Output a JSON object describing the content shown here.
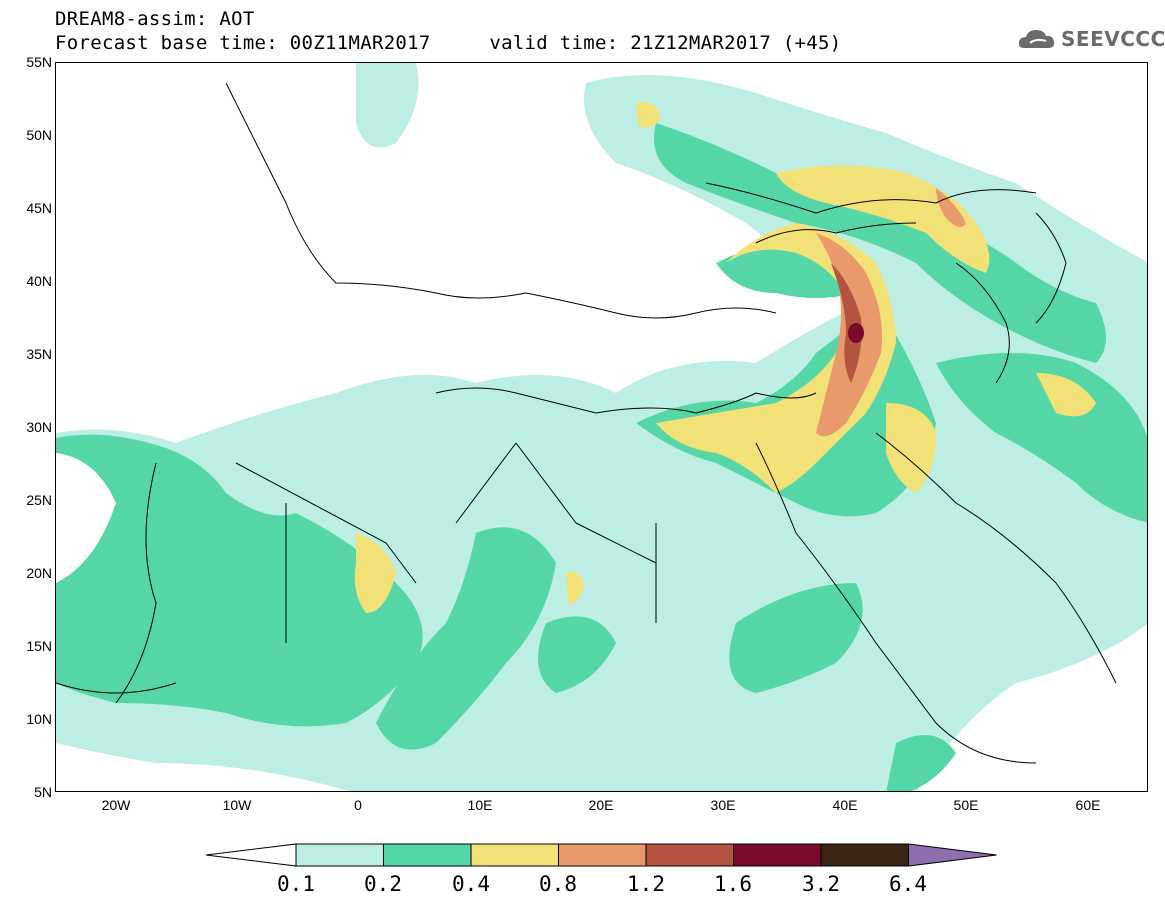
{
  "header": {
    "title_line1": "DREAM8-assim: AOT",
    "title_line2": "Forecast base time: 00Z11MAR2017     valid time: 21Z12MAR2017 (+45)"
  },
  "logo": {
    "text": "SEEVCCC",
    "icon": "cloud-icon"
  },
  "map": {
    "lat_range": [
      5,
      55
    ],
    "lon_range": [
      -25,
      65
    ],
    "lat_labels": [
      "55N",
      "50N",
      "45N",
      "40N",
      "35N",
      "30N",
      "25N",
      "20N",
      "15N",
      "10N",
      "5N"
    ],
    "lon_labels": [
      "20W",
      "10W",
      "0",
      "10E",
      "20E",
      "30E",
      "40E",
      "50E",
      "60E"
    ]
  },
  "legend": {
    "levels": [
      "0.1",
      "0.2",
      "0.4",
      "0.8",
      "1.2",
      "1.6",
      "3.2",
      "6.4"
    ],
    "colors": [
      "#ffffff",
      "#bdeee3",
      "#55d6a6",
      "#f2e176",
      "#e99a6c",
      "#b55341",
      "#7b0b2d",
      "#3b2616",
      "#8f6eb0"
    ]
  }
}
